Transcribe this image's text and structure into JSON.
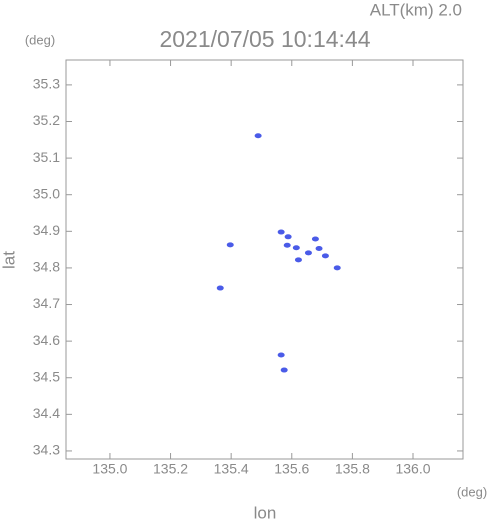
{
  "chart_data": {
    "type": "scatter",
    "title": "2021/07/05 10:14:44",
    "subtitle": "ALT(km) 2.0",
    "y_unit": "(deg)",
    "x_unit": "(deg)",
    "xlabel": "lon",
    "ylabel": "lat",
    "xlim": [
      134.855,
      136.165
    ],
    "ylim": [
      34.278,
      35.368
    ],
    "xticks": [
      {
        "value": 135.0,
        "label": "135.0"
      },
      135.2,
      135.4,
      135.6,
      135.8,
      {
        "value": 136.0,
        "label": "136.0"
      }
    ],
    "yticks": [
      34.3,
      34.4,
      {
        "value": 34.5,
        "label": "34.5"
      },
      34.6,
      34.7,
      34.8,
      34.9,
      {
        "value": 35.0,
        "label": "35.0"
      },
      35.1,
      35.2,
      35.3
    ],
    "grid": false,
    "series": [
      {
        "color": "#4a5be8",
        "x": [
          135.489,
          135.397,
          135.364,
          135.565,
          135.575,
          135.565,
          135.588,
          135.585,
          135.615,
          135.622,
          135.655,
          135.678,
          135.711,
          135.75,
          135.69
        ],
        "y": [
          35.161,
          34.863,
          34.745,
          34.562,
          34.521,
          34.898,
          34.885,
          34.862,
          34.855,
          34.822,
          34.841,
          34.879,
          34.833,
          34.8,
          34.853
        ]
      }
    ]
  }
}
